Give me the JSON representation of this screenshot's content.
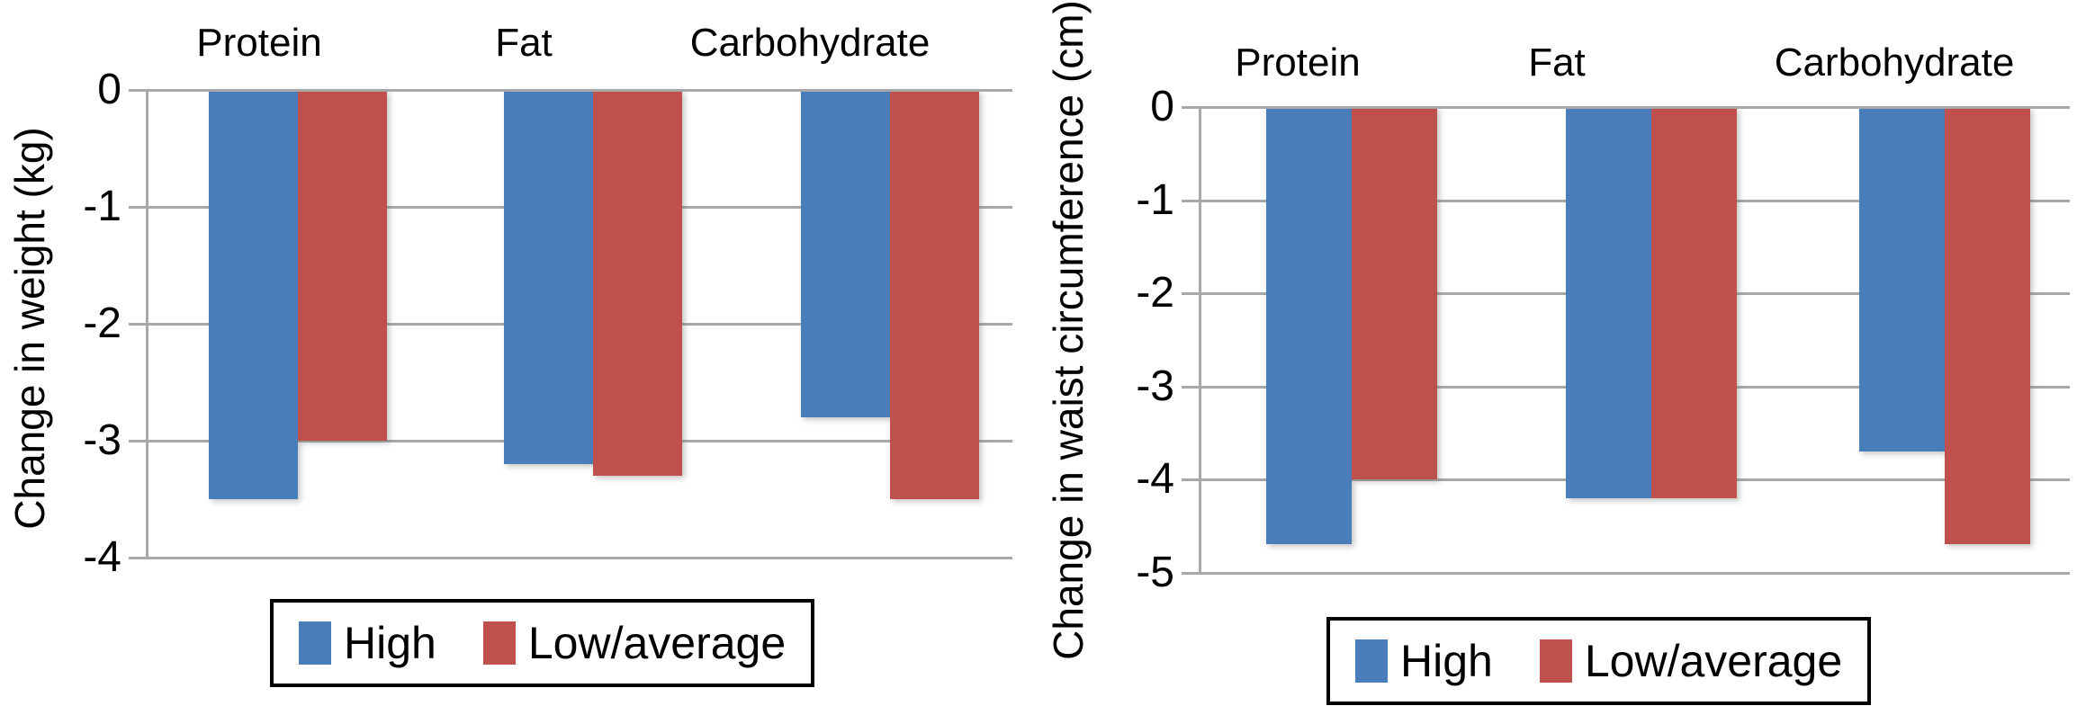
{
  "colors": {
    "high": "#4a7ebb",
    "low_average": "#c0504d",
    "gridline": "#a8a8a8",
    "axis_text": "#000000",
    "legend_border": "#000000",
    "background": "#ffffff"
  },
  "chart_data": [
    {
      "type": "bar",
      "title": "",
      "xlabel": "",
      "ylabel": "Change in weight (kg)",
      "categories": [
        "Protein",
        "Fat",
        "Carbohydrate"
      ],
      "series": [
        {
          "name": "High",
          "color": "#4a7ebb",
          "values": [
            -3.5,
            -3.2,
            -2.8
          ]
        },
        {
          "name": "Low/average",
          "color": "#c0504d",
          "values": [
            -3.0,
            -3.3,
            -3.5
          ]
        }
      ],
      "ylim": [
        -4,
        0
      ],
      "yticks": [
        0,
        -1,
        -2,
        -3,
        -4
      ],
      "grid": true,
      "legend_position": "bottom"
    },
    {
      "type": "bar",
      "title": "",
      "xlabel": "",
      "ylabel": "Change in waist circumference (cm)",
      "categories": [
        "Protein",
        "Fat",
        "Carbohydrate"
      ],
      "series": [
        {
          "name": "High",
          "color": "#4a7ebb",
          "values": [
            -4.7,
            -4.2,
            -3.7
          ]
        },
        {
          "name": "Low/average",
          "color": "#c0504d",
          "values": [
            -4.0,
            -4.2,
            -4.7
          ]
        }
      ],
      "ylim": [
        -5,
        0
      ],
      "yticks": [
        0,
        -1,
        -2,
        -3,
        -4,
        -5
      ],
      "grid": true,
      "legend_position": "bottom"
    }
  ]
}
